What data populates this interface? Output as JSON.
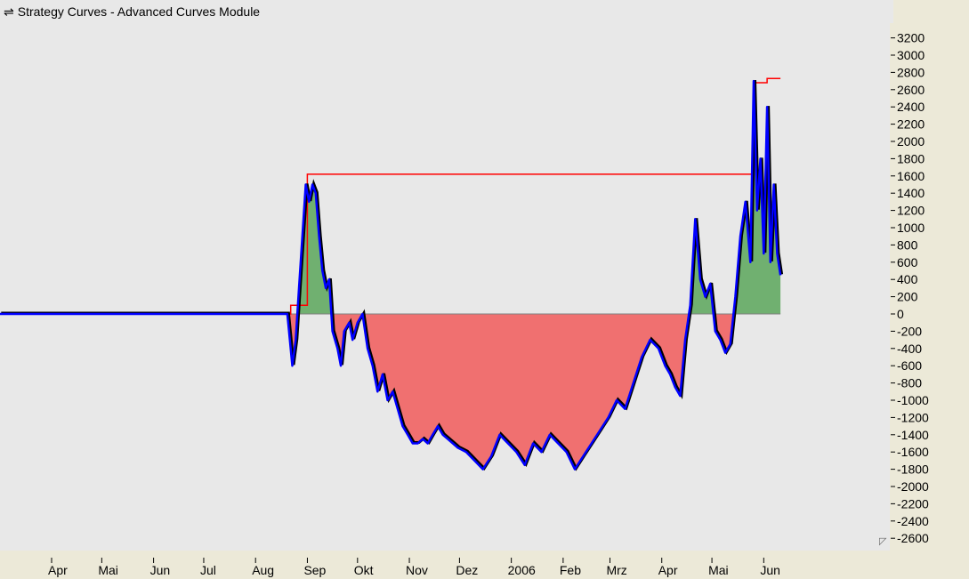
{
  "window": {
    "title": "Strategy Curves - Advanced Curves Module",
    "title_icon": "swap-arrows-icon"
  },
  "chart_data": {
    "type": "area",
    "title": "",
    "xlabel": "",
    "ylabel": "",
    "xlim": [
      "2005-03-01",
      "2006-06-30"
    ],
    "ylim": [
      -2700,
      3300
    ],
    "y_ticks": [
      3200,
      3000,
      2800,
      2600,
      2400,
      2200,
      2000,
      1800,
      1600,
      1400,
      1200,
      1000,
      800,
      600,
      400,
      200,
      0,
      -200,
      -400,
      -600,
      -800,
      -1000,
      -1200,
      -1400,
      -1600,
      -1800,
      -2000,
      -2200,
      -2400,
      -2600
    ],
    "x_ticks": [
      {
        "date": "2005-04-01",
        "label": "Apr"
      },
      {
        "date": "2005-05-01",
        "label": "Mai"
      },
      {
        "date": "2005-06-01",
        "label": "Jun"
      },
      {
        "date": "2005-07-01",
        "label": "Jul"
      },
      {
        "date": "2005-08-01",
        "label": "Aug"
      },
      {
        "date": "2005-09-01",
        "label": "Sep"
      },
      {
        "date": "2005-10-01",
        "label": "Okt"
      },
      {
        "date": "2005-11-01",
        "label": "Nov"
      },
      {
        "date": "2005-12-01",
        "label": "Dez"
      },
      {
        "date": "2006-01-01",
        "label": "2006"
      },
      {
        "date": "2006-02-01",
        "label": "Feb"
      },
      {
        "date": "2006-03-01",
        "label": "Mrz"
      },
      {
        "date": "2006-04-01",
        "label": "Apr"
      },
      {
        "date": "2006-05-01",
        "label": "Mai"
      },
      {
        "date": "2006-06-01",
        "label": "Jun"
      }
    ],
    "grid": false,
    "colors": {
      "equity_line": "#0000ff",
      "equity_shadow": "#000000",
      "high_water_mark": "#ff0000",
      "profit_fill": "#70b070",
      "loss_fill": "#f07070",
      "baseline": "#808080"
    },
    "series": [
      {
        "x": [
          "2005-03-01",
          "2005-08-20",
          "2005-08-21",
          "2005-08-23",
          "2005-08-25",
          "2005-08-27",
          "2005-08-29",
          "2005-08-31",
          "2005-09-02",
          "2005-09-04",
          "2005-09-06",
          "2005-09-08",
          "2005-09-10",
          "2005-09-12",
          "2005-09-14",
          "2005-09-16",
          "2005-09-19",
          "2005-09-21",
          "2005-09-23",
          "2005-09-26",
          "2005-09-28",
          "2005-10-01",
          "2005-10-04",
          "2005-10-07",
          "2005-10-10",
          "2005-10-13",
          "2005-10-16",
          "2005-10-19",
          "2005-10-22",
          "2005-10-25",
          "2005-10-28",
          "2005-10-31",
          "2005-11-03",
          "2005-11-06",
          "2005-11-09",
          "2005-11-12",
          "2005-11-15",
          "2005-11-18",
          "2005-11-21",
          "2005-11-24",
          "2005-11-27",
          "2005-11-30",
          "2005-12-05",
          "2005-12-10",
          "2005-12-15",
          "2005-12-20",
          "2005-12-25",
          "2005-12-30",
          "2006-01-04",
          "2006-01-09",
          "2006-01-14",
          "2006-01-19",
          "2006-01-24",
          "2006-01-29",
          "2006-02-03",
          "2006-02-08",
          "2006-02-13",
          "2006-02-18",
          "2006-02-23",
          "2006-02-28",
          "2006-03-05",
          "2006-03-10",
          "2006-03-15",
          "2006-03-20",
          "2006-03-25",
          "2006-03-30",
          "2006-04-03",
          "2006-04-06",
          "2006-04-09",
          "2006-04-12",
          "2006-04-15",
          "2006-04-18",
          "2006-04-21",
          "2006-04-24",
          "2006-04-27",
          "2006-04-30",
          "2006-05-03",
          "2006-05-06",
          "2006-05-09",
          "2006-05-12",
          "2006-05-15",
          "2006-05-18",
          "2006-05-21",
          "2006-05-24",
          "2006-05-26",
          "2006-05-28",
          "2006-05-30",
          "2006-06-01",
          "2006-06-03",
          "2006-06-05",
          "2006-06-07",
          "2006-06-09",
          "2006-06-11"
        ],
        "y": [
          0,
          0,
          -200,
          -600,
          -300,
          300,
          900,
          1500,
          1300,
          1500,
          1400,
          900,
          500,
          300,
          400,
          -200,
          -400,
          -600,
          -200,
          -100,
          -300,
          -100,
          0,
          -400,
          -600,
          -900,
          -700,
          -1000,
          -900,
          -1100,
          -1300,
          -1400,
          -1500,
          -1500,
          -1450,
          -1500,
          -1400,
          -1300,
          -1400,
          -1450,
          -1500,
          -1550,
          -1600,
          -1700,
          -1800,
          -1650,
          -1400,
          -1500,
          -1600,
          -1750,
          -1500,
          -1600,
          -1400,
          -1500,
          -1600,
          -1800,
          -1650,
          -1500,
          -1350,
          -1200,
          -1000,
          -1100,
          -800,
          -500,
          -300,
          -400,
          -600,
          -700,
          -850,
          -950,
          -300,
          100,
          1100,
          400,
          200,
          350,
          -200,
          -300,
          -450,
          -350,
          200,
          900,
          1300,
          600,
          2700,
          1200,
          1800,
          700,
          2400,
          600,
          1500,
          700,
          450
        ]
      },
      {
        "name": "",
        "x": [
          "2005-08-20",
          "2005-08-22",
          "2005-08-22",
          "2005-09-01",
          "2005-09-01",
          "2006-05-26",
          "2006-05-26",
          "2006-06-03",
          "2006-06-03",
          "2006-06-11"
        ],
        "y": [
          0,
          0,
          100,
          100,
          1620,
          1620,
          2680,
          2680,
          2730,
          2730
        ]
      }
    ]
  }
}
